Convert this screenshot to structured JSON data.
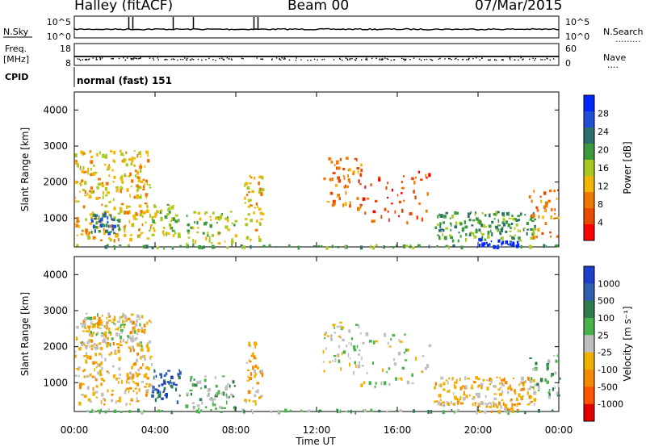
{
  "header": {
    "station": "Halley (fitACF)",
    "beam": "Beam 00",
    "date": "07/Mar/2015"
  },
  "sky_panel": {
    "left_label": "N.Sky",
    "right_label": "N.Search",
    "left_ticks": [
      "10^5",
      "10^0"
    ],
    "right_ticks": [
      "10^5",
      "10^0"
    ]
  },
  "freq_panel": {
    "left_label_line1": "Freq.",
    "left_label_line2": "[MHz]",
    "right_label": "Nave",
    "left_ticks": [
      "18",
      "8"
    ],
    "right_ticks": [
      "60",
      "0"
    ]
  },
  "cpid": {
    "label": "CPID",
    "text": "normal (fast) 151"
  },
  "power_panel": {
    "ylabel": "Slant Range [km]",
    "yticks": [
      "4000",
      "3000",
      "2000",
      "1000"
    ],
    "colorbar_label": "Power [dB]",
    "colorbar_ticks": [
      "28",
      "24",
      "20",
      "16",
      "12",
      "8",
      "4"
    ],
    "colors": [
      "#0026ff",
      "#1f4fd6",
      "#2c6e6a",
      "#3c9a3c",
      "#a8c91e",
      "#f2b705",
      "#f07800",
      "#e84a00",
      "#ff0000"
    ]
  },
  "velocity_panel": {
    "ylabel": "Slant Range [km]",
    "yticks": [
      "4000",
      "3000",
      "2000",
      "1000"
    ],
    "colorbar_label": "Velocity [m s⁻¹]",
    "colorbar_ticks": [
      "1000",
      "500",
      "100",
      "25",
      "-25",
      "-100",
      "-500",
      "-1000"
    ],
    "colors": [
      "#1d3fcc",
      "#2f5fae",
      "#2e7d4f",
      "#48b34a",
      "#bfbfbf",
      "#f0b000",
      "#f58a00",
      "#ff5500",
      "#e00000"
    ]
  },
  "x_axis": {
    "label": "Time UT",
    "ticks": [
      "00:00",
      "04:00",
      "08:00",
      "12:00",
      "16:00",
      "20:00",
      "00:00"
    ]
  },
  "chart_data": {
    "type": "heatmap",
    "title": "Halley (fitACF)  Beam 00  07/Mar/2015",
    "xlabel": "Time UT",
    "ylabel": "Slant Range [km]",
    "xlim": [
      "00:00",
      "24:00"
    ],
    "ylim": [
      200,
      4500
    ],
    "panels": [
      {
        "name": "Power [dB]",
        "range": [
          0,
          30
        ],
        "regions": [
          {
            "t0": 0.0,
            "t1": 3.8,
            "r0": 400,
            "r1": 2900,
            "value": 12,
            "density": 0.35
          },
          {
            "t0": 0.8,
            "t1": 2.2,
            "r0": 600,
            "r1": 1200,
            "value": 22,
            "density": 0.7
          },
          {
            "t0": 0.0,
            "t1": 24.0,
            "r0": 210,
            "r1": 280,
            "value": 20,
            "density": 0.55
          },
          {
            "t0": 3.8,
            "t1": 5.2,
            "r0": 500,
            "r1": 1400,
            "value": 16,
            "density": 0.5
          },
          {
            "t0": 5.5,
            "t1": 8.0,
            "r0": 300,
            "r1": 1200,
            "value": 14,
            "density": 0.35
          },
          {
            "t0": 8.4,
            "t1": 9.3,
            "r0": 400,
            "r1": 2200,
            "value": 12,
            "density": 0.35
          },
          {
            "t0": 12.3,
            "t1": 14.2,
            "r0": 1300,
            "r1": 2700,
            "value": 10,
            "density": 0.25
          },
          {
            "t0": 14.0,
            "t1": 17.6,
            "r0": 900,
            "r1": 2400,
            "value": 6,
            "density": 0.12
          },
          {
            "t0": 17.8,
            "t1": 22.8,
            "r0": 400,
            "r1": 1200,
            "value": 20,
            "density": 0.5
          },
          {
            "t0": 19.8,
            "t1": 22.0,
            "r0": 210,
            "r1": 450,
            "value": 28,
            "density": 0.75
          },
          {
            "t0": 22.5,
            "t1": 24.0,
            "r0": 500,
            "r1": 1800,
            "value": 8,
            "density": 0.25
          }
        ]
      },
      {
        "name": "Velocity [m s-1]",
        "range": [
          -1000,
          1000
        ],
        "regions": [
          {
            "t0": 0.0,
            "t1": 3.8,
            "r0": 400,
            "r1": 2900,
            "value": -150,
            "density": 0.35
          },
          {
            "t0": 0.3,
            "t1": 3.4,
            "r0": 2000,
            "r1": 2950,
            "value": 0,
            "density": 0.4
          },
          {
            "t0": 0.0,
            "t1": 24.0,
            "r0": 210,
            "r1": 280,
            "value": 300,
            "density": 0.55
          },
          {
            "t0": 3.8,
            "t1": 5.2,
            "r0": 500,
            "r1": 1400,
            "value": 600,
            "density": 0.5
          },
          {
            "t0": 5.5,
            "t1": 8.0,
            "r0": 300,
            "r1": 1200,
            "value": 300,
            "density": 0.35
          },
          {
            "t0": 8.4,
            "t1": 9.3,
            "r0": 400,
            "r1": 2200,
            "value": -120,
            "density": 0.35
          },
          {
            "t0": 12.3,
            "t1": 14.2,
            "r0": 1300,
            "r1": 2700,
            "value": 50,
            "density": 0.25
          },
          {
            "t0": 14.0,
            "t1": 17.6,
            "r0": 900,
            "r1": 2400,
            "value": 0,
            "density": 0.12
          },
          {
            "t0": 17.8,
            "t1": 22.8,
            "r0": 400,
            "r1": 1200,
            "value": -300,
            "density": 0.5
          },
          {
            "t0": 19.8,
            "t1": 22.0,
            "r0": 210,
            "r1": 450,
            "value": -150,
            "density": 0.75
          },
          {
            "t0": 22.5,
            "t1": 24.0,
            "r0": 500,
            "r1": 1800,
            "value": 200,
            "density": 0.25
          }
        ]
      }
    ]
  }
}
